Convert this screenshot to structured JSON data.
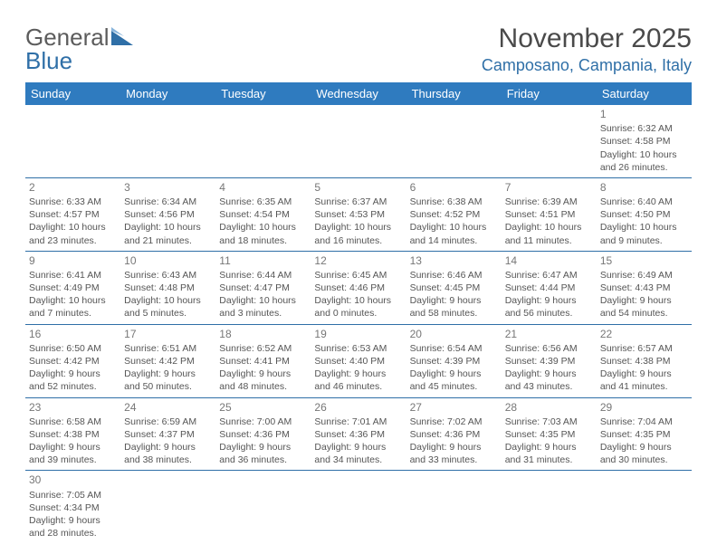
{
  "logo": {
    "text_general": "General",
    "text_blue": "Blue"
  },
  "header": {
    "month_title": "November 2025",
    "location": "Camposano, Campania, Italy"
  },
  "colors": {
    "header_bg": "#2f7bbf",
    "header_text": "#ffffff",
    "accent": "#2f6fa7",
    "body_text": "#555555",
    "title_text": "#4a4a4a"
  },
  "weekdays": [
    "Sunday",
    "Monday",
    "Tuesday",
    "Wednesday",
    "Thursday",
    "Friday",
    "Saturday"
  ],
  "weeks": [
    [
      null,
      null,
      null,
      null,
      null,
      null,
      {
        "day": "1",
        "sunrise": "Sunrise: 6:32 AM",
        "sunset": "Sunset: 4:58 PM",
        "daylight": "Daylight: 10 hours and 26 minutes."
      }
    ],
    [
      {
        "day": "2",
        "sunrise": "Sunrise: 6:33 AM",
        "sunset": "Sunset: 4:57 PM",
        "daylight": "Daylight: 10 hours and 23 minutes."
      },
      {
        "day": "3",
        "sunrise": "Sunrise: 6:34 AM",
        "sunset": "Sunset: 4:56 PM",
        "daylight": "Daylight: 10 hours and 21 minutes."
      },
      {
        "day": "4",
        "sunrise": "Sunrise: 6:35 AM",
        "sunset": "Sunset: 4:54 PM",
        "daylight": "Daylight: 10 hours and 18 minutes."
      },
      {
        "day": "5",
        "sunrise": "Sunrise: 6:37 AM",
        "sunset": "Sunset: 4:53 PM",
        "daylight": "Daylight: 10 hours and 16 minutes."
      },
      {
        "day": "6",
        "sunrise": "Sunrise: 6:38 AM",
        "sunset": "Sunset: 4:52 PM",
        "daylight": "Daylight: 10 hours and 14 minutes."
      },
      {
        "day": "7",
        "sunrise": "Sunrise: 6:39 AM",
        "sunset": "Sunset: 4:51 PM",
        "daylight": "Daylight: 10 hours and 11 minutes."
      },
      {
        "day": "8",
        "sunrise": "Sunrise: 6:40 AM",
        "sunset": "Sunset: 4:50 PM",
        "daylight": "Daylight: 10 hours and 9 minutes."
      }
    ],
    [
      {
        "day": "9",
        "sunrise": "Sunrise: 6:41 AM",
        "sunset": "Sunset: 4:49 PM",
        "daylight": "Daylight: 10 hours and 7 minutes."
      },
      {
        "day": "10",
        "sunrise": "Sunrise: 6:43 AM",
        "sunset": "Sunset: 4:48 PM",
        "daylight": "Daylight: 10 hours and 5 minutes."
      },
      {
        "day": "11",
        "sunrise": "Sunrise: 6:44 AM",
        "sunset": "Sunset: 4:47 PM",
        "daylight": "Daylight: 10 hours and 3 minutes."
      },
      {
        "day": "12",
        "sunrise": "Sunrise: 6:45 AM",
        "sunset": "Sunset: 4:46 PM",
        "daylight": "Daylight: 10 hours and 0 minutes."
      },
      {
        "day": "13",
        "sunrise": "Sunrise: 6:46 AM",
        "sunset": "Sunset: 4:45 PM",
        "daylight": "Daylight: 9 hours and 58 minutes."
      },
      {
        "day": "14",
        "sunrise": "Sunrise: 6:47 AM",
        "sunset": "Sunset: 4:44 PM",
        "daylight": "Daylight: 9 hours and 56 minutes."
      },
      {
        "day": "15",
        "sunrise": "Sunrise: 6:49 AM",
        "sunset": "Sunset: 4:43 PM",
        "daylight": "Daylight: 9 hours and 54 minutes."
      }
    ],
    [
      {
        "day": "16",
        "sunrise": "Sunrise: 6:50 AM",
        "sunset": "Sunset: 4:42 PM",
        "daylight": "Daylight: 9 hours and 52 minutes."
      },
      {
        "day": "17",
        "sunrise": "Sunrise: 6:51 AM",
        "sunset": "Sunset: 4:42 PM",
        "daylight": "Daylight: 9 hours and 50 minutes."
      },
      {
        "day": "18",
        "sunrise": "Sunrise: 6:52 AM",
        "sunset": "Sunset: 4:41 PM",
        "daylight": "Daylight: 9 hours and 48 minutes."
      },
      {
        "day": "19",
        "sunrise": "Sunrise: 6:53 AM",
        "sunset": "Sunset: 4:40 PM",
        "daylight": "Daylight: 9 hours and 46 minutes."
      },
      {
        "day": "20",
        "sunrise": "Sunrise: 6:54 AM",
        "sunset": "Sunset: 4:39 PM",
        "daylight": "Daylight: 9 hours and 45 minutes."
      },
      {
        "day": "21",
        "sunrise": "Sunrise: 6:56 AM",
        "sunset": "Sunset: 4:39 PM",
        "daylight": "Daylight: 9 hours and 43 minutes."
      },
      {
        "day": "22",
        "sunrise": "Sunrise: 6:57 AM",
        "sunset": "Sunset: 4:38 PM",
        "daylight": "Daylight: 9 hours and 41 minutes."
      }
    ],
    [
      {
        "day": "23",
        "sunrise": "Sunrise: 6:58 AM",
        "sunset": "Sunset: 4:38 PM",
        "daylight": "Daylight: 9 hours and 39 minutes."
      },
      {
        "day": "24",
        "sunrise": "Sunrise: 6:59 AM",
        "sunset": "Sunset: 4:37 PM",
        "daylight": "Daylight: 9 hours and 38 minutes."
      },
      {
        "day": "25",
        "sunrise": "Sunrise: 7:00 AM",
        "sunset": "Sunset: 4:36 PM",
        "daylight": "Daylight: 9 hours and 36 minutes."
      },
      {
        "day": "26",
        "sunrise": "Sunrise: 7:01 AM",
        "sunset": "Sunset: 4:36 PM",
        "daylight": "Daylight: 9 hours and 34 minutes."
      },
      {
        "day": "27",
        "sunrise": "Sunrise: 7:02 AM",
        "sunset": "Sunset: 4:36 PM",
        "daylight": "Daylight: 9 hours and 33 minutes."
      },
      {
        "day": "28",
        "sunrise": "Sunrise: 7:03 AM",
        "sunset": "Sunset: 4:35 PM",
        "daylight": "Daylight: 9 hours and 31 minutes."
      },
      {
        "day": "29",
        "sunrise": "Sunrise: 7:04 AM",
        "sunset": "Sunset: 4:35 PM",
        "daylight": "Daylight: 9 hours and 30 minutes."
      }
    ],
    [
      {
        "day": "30",
        "sunrise": "Sunrise: 7:05 AM",
        "sunset": "Sunset: 4:34 PM",
        "daylight": "Daylight: 9 hours and 28 minutes."
      },
      null,
      null,
      null,
      null,
      null,
      null
    ]
  ]
}
